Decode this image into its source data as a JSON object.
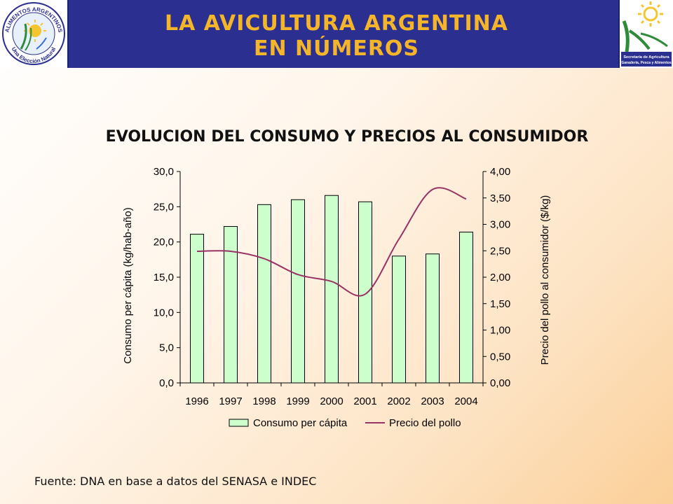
{
  "header": {
    "title_line1": "LA AVICULTURA ARGENTINA",
    "title_line2": "EN NÚMEROS",
    "left_logo_text_top": "ALIMENTOS ARGENTINOS",
    "left_logo_text_bottom": "Una Elección Natural",
    "right_logo_text": [
      "Secretaría de Agricultura",
      "Ganadería, Pesca y Alimentos"
    ],
    "colors": {
      "band": "#2b2f8f",
      "title": "#f5b52a"
    }
  },
  "chart_data": {
    "type": "bar",
    "title": "EVOLUCION DEL CONSUMO Y PRECIOS AL CONSUMIDOR",
    "categories": [
      "1996",
      "1997",
      "1998",
      "1999",
      "2000",
      "2001",
      "2002",
      "2003",
      "2004"
    ],
    "series": [
      {
        "name": "Consumo per cápita",
        "type": "bar",
        "axis": "left",
        "color": "#ccffcc",
        "values": [
          21.1,
          22.2,
          25.3,
          26.0,
          26.6,
          25.7,
          18.0,
          18.3,
          21.4
        ]
      },
      {
        "name": "Precio del pollo",
        "type": "line",
        "axis": "right",
        "color": "#993366",
        "values": [
          2.49,
          2.49,
          2.35,
          2.05,
          1.92,
          1.68,
          2.72,
          3.66,
          3.48
        ]
      }
    ],
    "ylabel": "Consumo per cápita (kg/hab-año)",
    "y2label": "Precio del pollo al consumidor ($/kg)",
    "ylim": [
      0,
      30
    ],
    "y2lim": [
      0,
      4
    ],
    "yticks": [
      "0,0",
      "5,0",
      "10,0",
      "15,0",
      "20,0",
      "25,0",
      "30,0"
    ],
    "y2ticks": [
      "0,00",
      "0,50",
      "1,00",
      "1,50",
      "2,00",
      "2,50",
      "3,00",
      "3,50",
      "4,00"
    ],
    "grid": false,
    "legend": "bottom"
  },
  "footer": {
    "source": "Fuente: DNA en base a datos del SENASA e INDEC"
  }
}
